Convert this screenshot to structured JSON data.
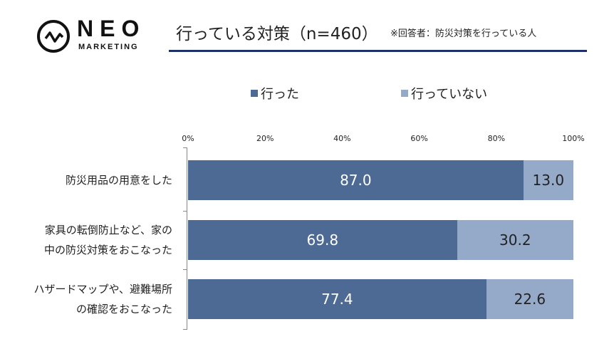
{
  "logo": {
    "name": "NEO",
    "sub": "MARKETING"
  },
  "header": {
    "title": "行っている対策（n=460）",
    "subtitle": "※回答者：防災対策を行っている人"
  },
  "chart_data": {
    "type": "bar",
    "stacked": true,
    "orientation": "horizontal",
    "title": "行っている対策（n=460）",
    "categories": [
      "防災用品の用意をした",
      "家具の転倒防止など、家の\n中の防災対策をおこなった",
      "ハザードマップや、避難場所\nの確認をおこなった"
    ],
    "series": [
      {
        "name": "行った",
        "color": "#4d6a94",
        "values": [
          87.0,
          69.8,
          77.4
        ]
      },
      {
        "name": "行っていない",
        "color": "#95a9c8",
        "values": [
          13.0,
          30.2,
          22.6
        ]
      }
    ],
    "xticks": [
      "0%",
      "20%",
      "40%",
      "60%",
      "80%",
      "100%"
    ],
    "xlim": [
      0,
      100
    ],
    "legend": "top"
  }
}
